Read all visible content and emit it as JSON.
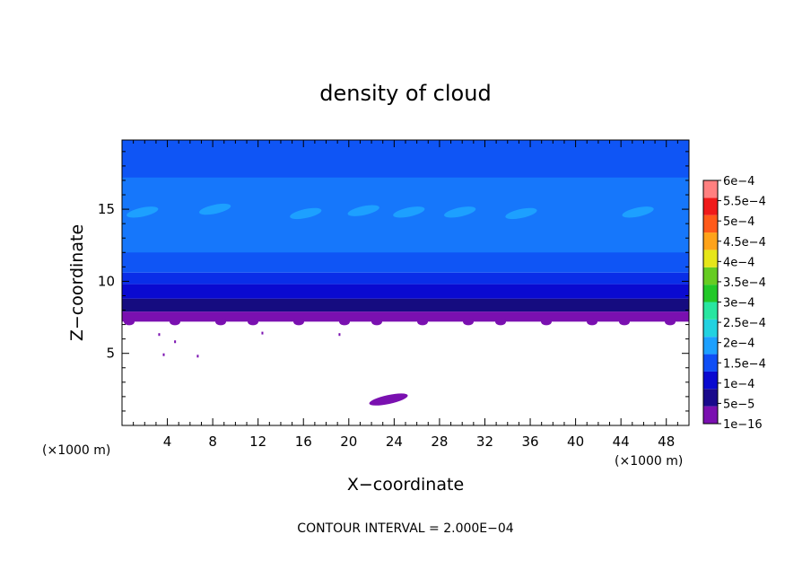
{
  "chart_data": {
    "type": "heatmap",
    "title": "density of cloud",
    "xlabel": "X−coordinate",
    "ylabel": "Z−coordinate",
    "x_unit_left": "(×1000 m)",
    "x_unit_right": "(×1000 m)",
    "footer": "CONTOUR INTERVAL = 2.000E−04",
    "xlim": [
      0,
      50
    ],
    "ylim": [
      0,
      19.8
    ],
    "x_ticks": [
      4,
      8,
      12,
      16,
      20,
      24,
      28,
      32,
      36,
      40,
      44,
      48
    ],
    "x_tick_labels": [
      "4",
      "8",
      "12",
      "16",
      "20",
      "24",
      "28",
      "32",
      "36",
      "40",
      "44",
      "48"
    ],
    "y_ticks": [
      5,
      10,
      15
    ],
    "y_tick_labels": [
      "5",
      "10",
      "15"
    ],
    "colorbar": {
      "labels": [
        "1e−16",
        "5e−5",
        "1e−4",
        "1.5e−4",
        "2e−4",
        "2.5e−4",
        "3e−4",
        "3.5e−4",
        "4e−4",
        "4.5e−4",
        "5e−4",
        "5.5e−4",
        "6e−4"
      ],
      "colors": [
        "#7a10b0",
        "#1a0a8c",
        "#0a0ad0",
        "#0f4ef5",
        "#1da0ff",
        "#22d2e0",
        "#28e6a0",
        "#22c828",
        "#66cc22",
        "#e6e61a",
        "#ffa31a",
        "#ff5a1a",
        "#f01a1a",
        "#ff8080"
      ]
    },
    "layers": [
      {
        "z_from": 7.2,
        "z_to": 7.9,
        "value": "1e-16",
        "color": "#7a10b0"
      },
      {
        "z_from": 7.9,
        "z_to": 8.8,
        "value": "5e-5",
        "color": "#150c80"
      },
      {
        "z_from": 8.8,
        "z_to": 9.8,
        "value": "7.5e-5",
        "color": "#0a0ad0"
      },
      {
        "z_from": 9.8,
        "z_to": 10.6,
        "value": "1e-4",
        "color": "#0a2ee8"
      },
      {
        "z_from": 10.6,
        "z_to": 19.8,
        "value": "1.25e-4",
        "color": "#0f55f5"
      },
      {
        "z_from": 12.0,
        "z_to": 17.2,
        "value": "1.4e-4",
        "color": "#1677fb"
      }
    ],
    "patches": [
      {
        "x": 1.8,
        "z": 14.8,
        "value": "1.5e-4"
      },
      {
        "x": 8.2,
        "z": 15.0,
        "value": "1.5e-4"
      },
      {
        "x": 16.2,
        "z": 14.7,
        "value": "1.5e-4"
      },
      {
        "x": 21.3,
        "z": 14.9,
        "value": "1.5e-4"
      },
      {
        "x": 25.3,
        "z": 14.8,
        "value": "1.5e-4"
      },
      {
        "x": 29.8,
        "z": 14.8,
        "value": "1.5e-4"
      },
      {
        "x": 35.2,
        "z": 14.7,
        "value": "1.5e-4"
      },
      {
        "x": 45.5,
        "z": 14.8,
        "value": "1.5e-4"
      },
      {
        "x": 23.5,
        "z": 1.8,
        "value": "1e-16"
      }
    ]
  }
}
